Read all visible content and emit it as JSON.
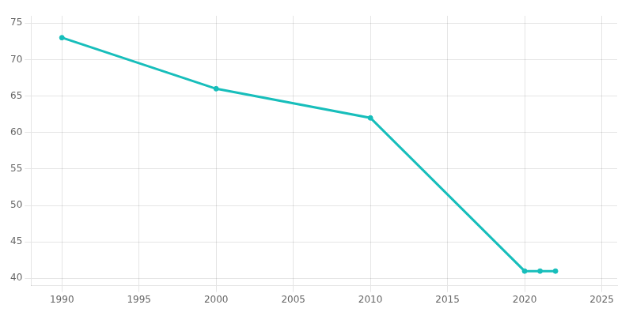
{
  "chart_data": {
    "type": "line",
    "x": [
      1990,
      2000,
      2010,
      2020,
      2021,
      2022
    ],
    "values": [
      73,
      66,
      62,
      41,
      41,
      41
    ],
    "color": "#17bebb",
    "marker": "circle",
    "xlim": [
      1988,
      2026
    ],
    "ylim": [
      39,
      76
    ],
    "xticks": [
      1990,
      1995,
      2000,
      2005,
      2010,
      2015,
      2020,
      2025
    ],
    "yticks": [
      40,
      45,
      50,
      55,
      60,
      65,
      70,
      75
    ],
    "grid": true
  }
}
